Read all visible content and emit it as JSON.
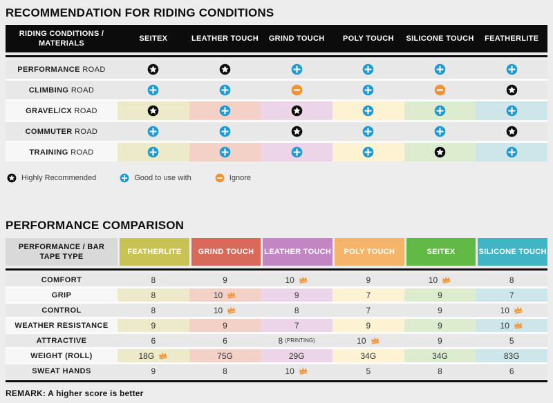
{
  "colors": {
    "page_bg": "#ededed",
    "header_black": "#0c0c0c",
    "star_black": "#0c0c0c",
    "plus_blue": "#1d9ad2",
    "minus_orange": "#f09233",
    "crown_orange": "#f2953b",
    "row_gray": "#e8e8e8",
    "row_label_light": "#f7f7f7",
    "t2_label_header_bg": "#d9d9d9"
  },
  "palette": {
    "pale": [
      "#eceac8",
      "#f4d1c7",
      "#edd5e9",
      "#fdf2d1",
      "#dcedcf",
      "#cde6ea"
    ]
  },
  "recommendation": {
    "title": "RECOMMENDATION FOR RIDING CONDITIONS",
    "header_label": "RIDING CONDITIONS / MATERIALS",
    "columns": [
      "SEITEX",
      "LEATHER TOUCH",
      "GRIND TOUCH",
      "POLY TOUCH",
      "SILICONE TOUCH",
      "FEATHERLITE"
    ],
    "rows": [
      {
        "name": "PERFORMANCE",
        "suffix": "ROAD",
        "colored": false,
        "ratings": [
          "star",
          "star",
          "plus",
          "plus",
          "plus",
          "plus"
        ]
      },
      {
        "name": "CLIMBING",
        "suffix": "ROAD",
        "colored": false,
        "ratings": [
          "plus",
          "plus",
          "minus",
          "plus",
          "minus",
          "star"
        ]
      },
      {
        "name": "GRAVEL/CX",
        "suffix": "ROAD",
        "colored": true,
        "ratings": [
          "star",
          "plus",
          "star",
          "plus",
          "plus",
          "plus"
        ]
      },
      {
        "name": "COMMUTER",
        "suffix": "ROAD",
        "colored": false,
        "ratings": [
          "plus",
          "plus",
          "star",
          "plus",
          "plus",
          "star"
        ]
      },
      {
        "name": "TRAINING",
        "suffix": "ROAD",
        "colored": true,
        "ratings": [
          "plus",
          "plus",
          "plus",
          "plus",
          "star",
          "plus"
        ]
      }
    ],
    "legend": [
      {
        "icon": "star",
        "label": "Highly Recommended"
      },
      {
        "icon": "plus",
        "label": "Good to use with"
      },
      {
        "icon": "minus",
        "label": "Ignore"
      }
    ]
  },
  "performance": {
    "title": "PERFORMANCE COMPARISON",
    "header_label": "PERFORMANCE / BAR TAPE TYPE",
    "columns": [
      {
        "label": "FEATHERLITE",
        "color": "#c9c355"
      },
      {
        "label": "GRIND TOUCH",
        "color": "#d9695a"
      },
      {
        "label": "LEATHER TOUCH",
        "color": "#c287c2"
      },
      {
        "label": "POLY TOUCH",
        "color": "#f4b469"
      },
      {
        "label": "SEITEX",
        "color": "#61b845"
      },
      {
        "label": "SILICONE TOUCH",
        "color": "#41b5c3"
      }
    ],
    "rows": [
      {
        "label": "COMFORT",
        "colored": false,
        "cells": [
          {
            "v": "8"
          },
          {
            "v": "9"
          },
          {
            "v": "10",
            "crown": true
          },
          {
            "v": "9"
          },
          {
            "v": "10",
            "crown": true
          },
          {
            "v": "8"
          }
        ]
      },
      {
        "label": "GRIP",
        "colored": true,
        "cells": [
          {
            "v": "8"
          },
          {
            "v": "10",
            "crown": true
          },
          {
            "v": "9"
          },
          {
            "v": "7"
          },
          {
            "v": "9"
          },
          {
            "v": "7"
          }
        ]
      },
      {
        "label": "CONTROL",
        "colored": false,
        "cells": [
          {
            "v": "8"
          },
          {
            "v": "10",
            "crown": true
          },
          {
            "v": "8"
          },
          {
            "v": "7"
          },
          {
            "v": "9"
          },
          {
            "v": "10",
            "crown": true
          }
        ]
      },
      {
        "label": "WEATHER RESISTANCE",
        "colored": true,
        "cells": [
          {
            "v": "9"
          },
          {
            "v": "9"
          },
          {
            "v": "7"
          },
          {
            "v": "9"
          },
          {
            "v": "9"
          },
          {
            "v": "10",
            "crown": true
          }
        ]
      },
      {
        "label": "ATTRACTIVE",
        "colored": false,
        "cells": [
          {
            "v": "6"
          },
          {
            "v": "6"
          },
          {
            "v": "8",
            "note": "(PRINTING)"
          },
          {
            "v": "10",
            "crown": true
          },
          {
            "v": "9"
          },
          {
            "v": "5"
          }
        ]
      },
      {
        "label": "WEIGHT (ROLL)",
        "colored": true,
        "cells": [
          {
            "v": "18G",
            "crown": true
          },
          {
            "v": "75G"
          },
          {
            "v": "29G"
          },
          {
            "v": "34G"
          },
          {
            "v": "34G"
          },
          {
            "v": "83G"
          }
        ]
      },
      {
        "label": "SWEAT HANDS",
        "colored": false,
        "cells": [
          {
            "v": "9"
          },
          {
            "v": "8"
          },
          {
            "v": "10",
            "crown": true
          },
          {
            "v": "5"
          },
          {
            "v": "8"
          },
          {
            "v": "6"
          }
        ]
      }
    ],
    "remark": "REMARK: A higher score is better"
  },
  "chart_data": [
    {
      "type": "table",
      "title": "RECOMMENDATION FOR RIDING CONDITIONS",
      "columns": [
        "RIDING CONDITIONS / MATERIALS",
        "SEITEX",
        "LEATHER TOUCH",
        "GRIND TOUCH",
        "POLY TOUCH",
        "SILICONE TOUCH",
        "FEATHERLITE"
      ],
      "legend": {
        "star": "Highly Recommended",
        "plus": "Good to use with",
        "minus": "Ignore"
      },
      "rows": [
        [
          "PERFORMANCE ROAD",
          "star",
          "star",
          "plus",
          "plus",
          "plus",
          "plus"
        ],
        [
          "CLIMBING ROAD",
          "plus",
          "plus",
          "minus",
          "plus",
          "minus",
          "star"
        ],
        [
          "GRAVEL/CX ROAD",
          "star",
          "plus",
          "star",
          "plus",
          "plus",
          "plus"
        ],
        [
          "COMMUTER ROAD",
          "plus",
          "plus",
          "star",
          "plus",
          "plus",
          "star"
        ],
        [
          "TRAINING ROAD",
          "plus",
          "plus",
          "plus",
          "plus",
          "star",
          "plus"
        ]
      ]
    },
    {
      "type": "table",
      "title": "PERFORMANCE COMPARISON",
      "columns": [
        "PERFORMANCE / BAR TAPE TYPE",
        "FEATHERLITE",
        "GRIND TOUCH",
        "LEATHER TOUCH",
        "POLY TOUCH",
        "SEITEX",
        "SILICONE TOUCH"
      ],
      "note": "crown marks best score in row",
      "rows": [
        [
          "COMFORT",
          "8",
          "9",
          "10 (crown)",
          "9",
          "10 (crown)",
          "8"
        ],
        [
          "GRIP",
          "8",
          "10 (crown)",
          "9",
          "7",
          "9",
          "7"
        ],
        [
          "CONTROL",
          "8",
          "10 (crown)",
          "8",
          "7",
          "9",
          "10 (crown)"
        ],
        [
          "WEATHER RESISTANCE",
          "9",
          "9",
          "7",
          "9",
          "9",
          "10 (crown)"
        ],
        [
          "ATTRACTIVE",
          "6",
          "6",
          "8 (PRINTING)",
          "10 (crown)",
          "9",
          "5"
        ],
        [
          "WEIGHT (ROLL)",
          "18G (crown)",
          "75G",
          "29G",
          "34G",
          "34G",
          "83G"
        ],
        [
          "SWEAT HANDS",
          "9",
          "8",
          "10 (crown)",
          "5",
          "8",
          "6"
        ]
      ],
      "remark": "REMARK: A higher score is better"
    }
  ]
}
